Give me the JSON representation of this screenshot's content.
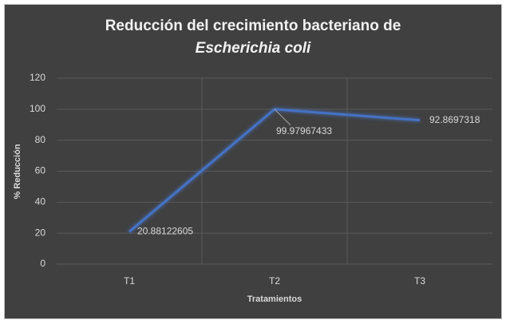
{
  "chart_data": {
    "type": "line",
    "title": [
      "Reducción del crecimiento bacteriano de",
      "Escherichia coli"
    ],
    "x_label": "Tratamientos",
    "y_label": "% Reducción",
    "categories": [
      "T1",
      "T2",
      "T3"
    ],
    "values": [
      20.88122605,
      99.97967433,
      92.8697318
    ],
    "color": "#4472c4",
    "ylim": [
      0,
      120
    ],
    "yticks": [
      0,
      20,
      40,
      60,
      80,
      100,
      120
    ],
    "grid": true
  }
}
